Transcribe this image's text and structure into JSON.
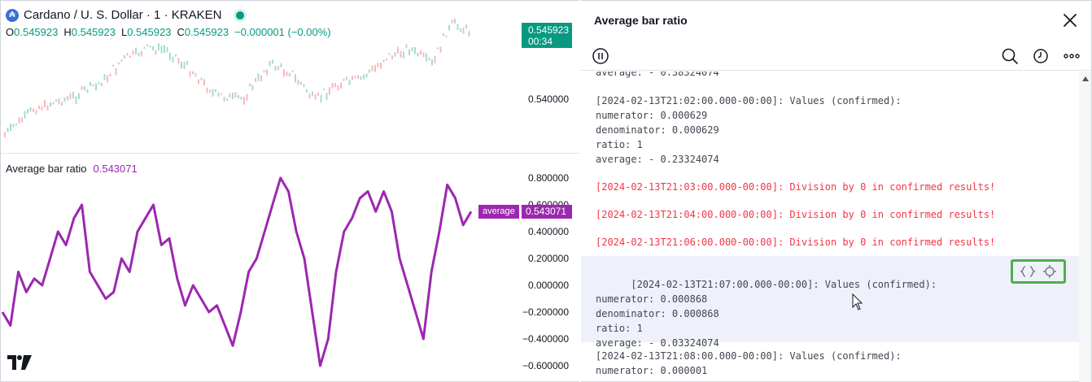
{
  "chart": {
    "symbol_title": "Cardano / U. S. Dollar · 1 · KRAKEN",
    "symbol_logo_icon": "cardano-logo-icon",
    "ohlc": {
      "o_label": "O",
      "o": "0.545923",
      "h_label": "H",
      "h": "0.545923",
      "l_label": "L",
      "l": "0.545923",
      "c_label": "C",
      "c": "0.545923",
      "change": "−0.000001 (−0.00%)"
    },
    "last_price": "0.545923",
    "countdown": "00:34",
    "price_axis": [
      "0.540000"
    ],
    "indicator": {
      "name": "Average bar ratio",
      "value": "0.543071",
      "plot_tag": "average",
      "plot_value": "0.543071",
      "axis": [
        "0.800000",
        "0.600000",
        "0.400000",
        "0.200000",
        "0.000000",
        "−0.200000",
        "−0.400000",
        "−0.600000"
      ]
    },
    "logo_text": "17",
    "colors": {
      "up": "#089981",
      "down": "#f23645",
      "indicator": "#9c27b0"
    }
  },
  "log_panel": {
    "title": "Average bar ratio",
    "icons": {
      "close": "close-icon",
      "pause": "pause-icon",
      "search": "search-icon",
      "history": "clock-icon",
      "more": "more-icon",
      "source": "code-braces-icon",
      "locate": "crosshair-icon"
    },
    "entries": [
      {
        "text": "average: - 0.38324074",
        "type": "info"
      },
      {
        "text": "[2024-02-13T21:02:00.000-00:00]: Values (confirmed):\nnumerator: 0.000629\ndenominator: 0.000629\nratio: 1\naverage: - 0.23324074",
        "type": "info"
      },
      {
        "text": "[2024-02-13T21:03:00.000-00:00]: Division by 0 in confirmed results!",
        "type": "error"
      },
      {
        "text": "[2024-02-13T21:04:00.000-00:00]: Division by 0 in confirmed results!",
        "type": "error"
      },
      {
        "text": "[2024-02-13T21:06:00.000-00:00]: Division by 0 in confirmed results!",
        "type": "error"
      },
      {
        "text": "[2024-02-13T21:07:00.000-00:00]: Values (confirmed):\nnumerator: 0.000868\ndenominator: 0.000868\nratio: 1\naverage: - 0.03324074",
        "type": "info"
      },
      {
        "text": "[2024-02-13T21:08:00.000-00:00]: Values (confirmed):\nnumerator: 0.000001",
        "type": "info"
      }
    ]
  }
}
